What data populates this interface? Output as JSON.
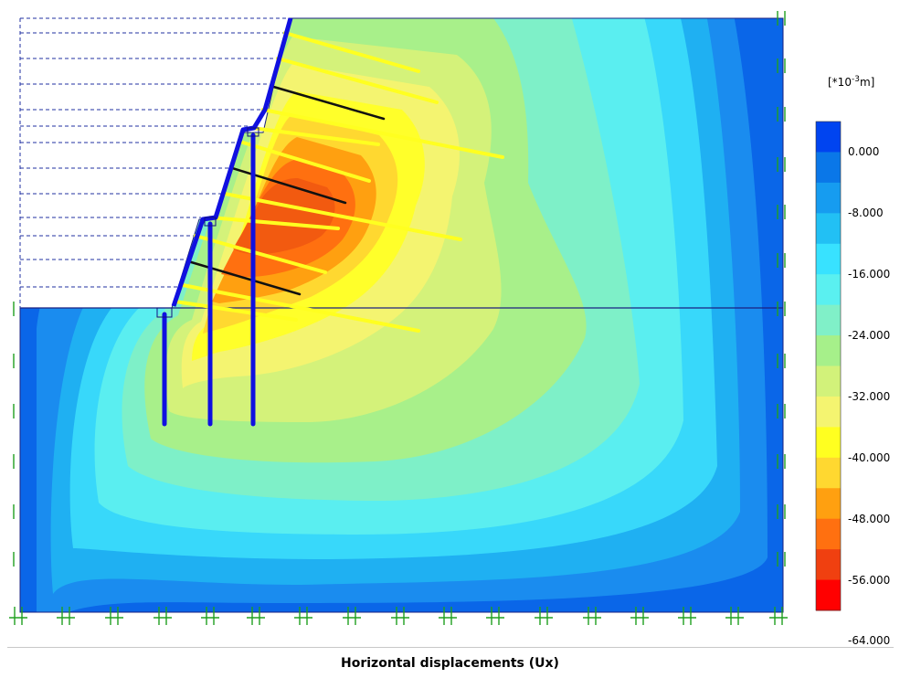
{
  "caption": "Horizontal displacements (Ux)",
  "legend": {
    "unit_prefix": "[*10",
    "unit_exp": "-3",
    "unit_suffix": "m]",
    "colors": [
      "#0044f0",
      "#0a77e8",
      "#169cf0",
      "#22c0f4",
      "#38e2ff",
      "#5af0f0",
      "#80f0c8",
      "#a6f08a",
      "#d2f27a",
      "#f4f470",
      "#ffff20",
      "#ffd830",
      "#ffa010",
      "#ff7010",
      "#f04010",
      "#ff0000"
    ],
    "tick_labels": [
      "0.000",
      "-8.000",
      "-16.000",
      "-24.000",
      "-32.000",
      "-40.000",
      "-48.000",
      "-56.000",
      "-64.000"
    ]
  }
}
